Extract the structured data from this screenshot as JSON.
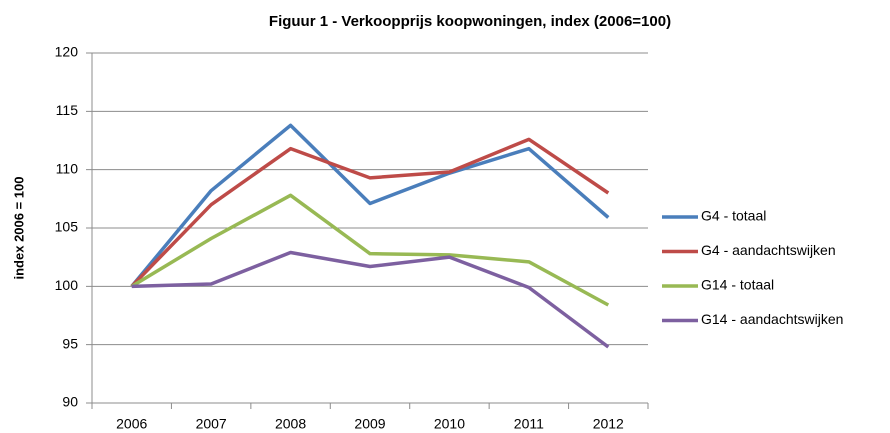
{
  "chart_data": {
    "type": "line",
    "title": "Figuur 1 - Verkoopprijs koopwoningen, index (2006=100)",
    "y_label": "index 2006 = 100",
    "categories": [
      "2006",
      "2007",
      "2008",
      "2009",
      "2010",
      "2011",
      "2012"
    ],
    "series": [
      {
        "name": "G4 - totaal",
        "color": "#4a7ebb",
        "values": [
          100,
          108.2,
          113.8,
          107.1,
          109.7,
          111.8,
          105.9
        ]
      },
      {
        "name": "G4 - aandachtswijken",
        "color": "#be4b48",
        "values": [
          100,
          107.0,
          111.8,
          109.3,
          109.8,
          112.6,
          108.0
        ]
      },
      {
        "name": "G14 - totaal",
        "color": "#98b954",
        "values": [
          100,
          104.1,
          107.8,
          102.8,
          102.7,
          102.1,
          98.4
        ]
      },
      {
        "name": "G14 - aandachtswijken",
        "color": "#7d60a0",
        "values": [
          100,
          100.2,
          102.9,
          101.7,
          102.5,
          99.9,
          94.8
        ]
      }
    ],
    "ylim": [
      90,
      120
    ],
    "yticks": [
      90,
      95,
      100,
      105,
      110,
      115,
      120
    ],
    "grid": true,
    "legend": "right"
  }
}
